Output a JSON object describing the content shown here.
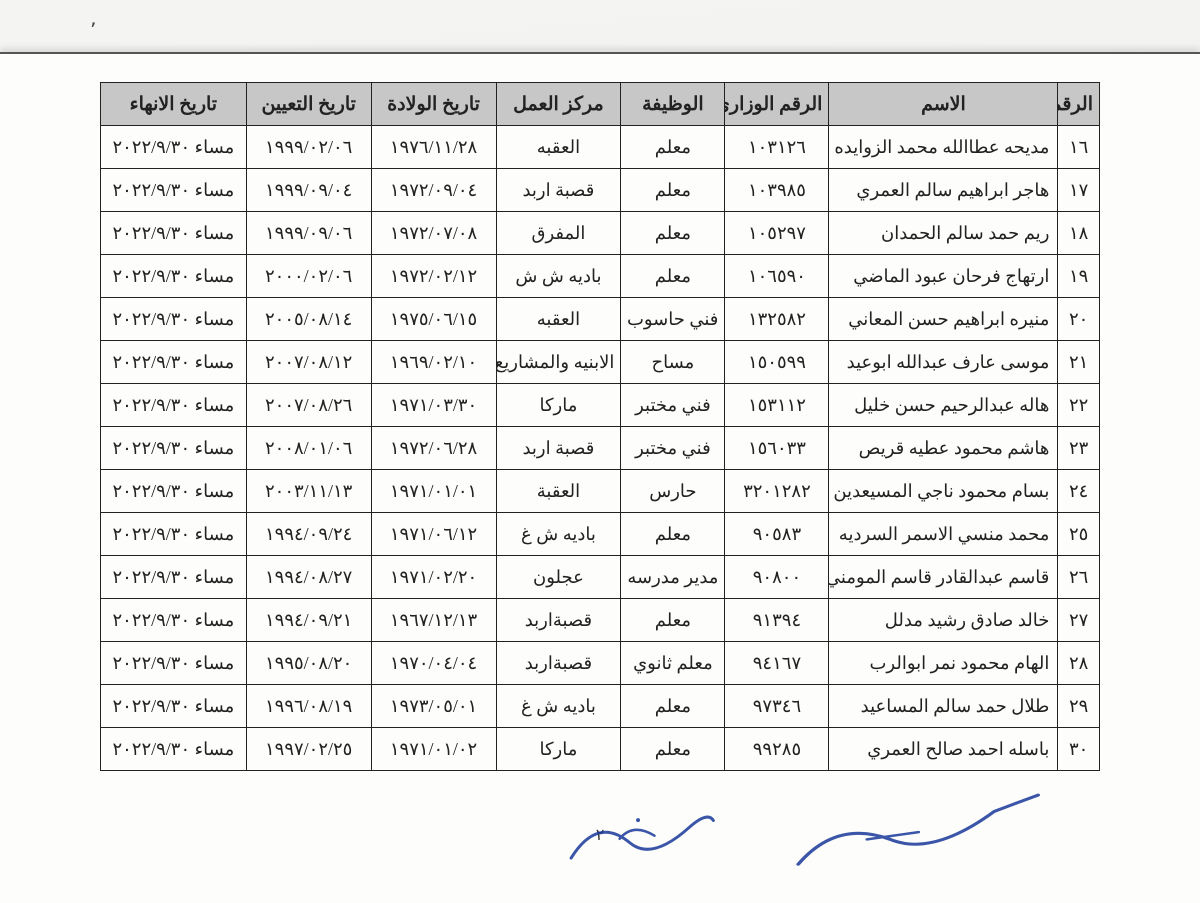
{
  "table": {
    "header_bg": "#c7c7c7",
    "border_color": "#222222",
    "columns": [
      {
        "key": "num",
        "label": "الرقم"
      },
      {
        "key": "name",
        "label": "الاسم"
      },
      {
        "key": "ministry_no",
        "label": "الرقم الوزاري"
      },
      {
        "key": "job",
        "label": "الوظيفة"
      },
      {
        "key": "work_center",
        "label": "مركز العمل"
      },
      {
        "key": "dob",
        "label": "تاريخ الولادة"
      },
      {
        "key": "appoint_date",
        "label": "تاريخ التعيين"
      },
      {
        "key": "end_date",
        "label": "تاريخ الانهاء"
      }
    ],
    "rows": [
      {
        "num": "١٦",
        "name": "مديحه عطاالله محمد الزوايده",
        "ministry_no": "١٠٣١٢٦",
        "job": "معلم",
        "work_center": "العقبه",
        "dob": "١٩٧٦/١١/٢٨",
        "appoint_date": "١٩٩٩/٠٢/٠٦",
        "end_date": "مساء ٢٠٢٢/٩/٣٠"
      },
      {
        "num": "١٧",
        "name": "هاجر ابراهيم سالم العمري",
        "ministry_no": "١٠٣٩٨٥",
        "job": "معلم",
        "work_center": "قصبة اربد",
        "dob": "١٩٧٢/٠٩/٠٤",
        "appoint_date": "١٩٩٩/٠٩/٠٤",
        "end_date": "مساء ٢٠٢٢/٩/٣٠"
      },
      {
        "num": "١٨",
        "name": "ريم حمد سالم الحمدان",
        "ministry_no": "١٠٥٢٩٧",
        "job": "معلم",
        "work_center": "المفرق",
        "dob": "١٩٧٢/٠٧/٠٨",
        "appoint_date": "١٩٩٩/٠٩/٠٦",
        "end_date": "مساء ٢٠٢٢/٩/٣٠"
      },
      {
        "num": "١٩",
        "name": "ارتهاج فرحان عبود الماضي",
        "ministry_no": "١٠٦٥٩٠",
        "job": "معلم",
        "work_center": "باديه ش ش",
        "dob": "١٩٧٢/٠٢/١٢",
        "appoint_date": "٢٠٠٠/٠٢/٠٦",
        "end_date": "مساء ٢٠٢٢/٩/٣٠"
      },
      {
        "num": "٢٠",
        "name": "منيره ابراهيم حسن المعاني",
        "ministry_no": "١٣٢٥٨٢",
        "job": "فني حاسوب",
        "work_center": "العقبه",
        "dob": "١٩٧٥/٠٦/١٥",
        "appoint_date": "٢٠٠٥/٠٨/١٤",
        "end_date": "مساء ٢٠٢٢/٩/٣٠"
      },
      {
        "num": "٢١",
        "name": "موسى عارف عبدالله ابوعيد",
        "ministry_no": "١٥٠٥٩٩",
        "job": "مساح",
        "work_center": "الابنيه والمشاريع",
        "dob": "١٩٦٩/٠٢/١٠",
        "appoint_date": "٢٠٠٧/٠٨/١٢",
        "end_date": "مساء ٢٠٢٢/٩/٣٠"
      },
      {
        "num": "٢٢",
        "name": "هاله عبدالرحيم حسن خليل",
        "ministry_no": "١٥٣١١٢",
        "job": "فني مختبر",
        "work_center": "ماركا",
        "dob": "١٩٧١/٠٣/٣٠",
        "appoint_date": "٢٠٠٧/٠٨/٢٦",
        "end_date": "مساء ٢٠٢٢/٩/٣٠"
      },
      {
        "num": "٢٣",
        "name": "هاشم محمود عطيه قريص",
        "ministry_no": "١٥٦٠٣٣",
        "job": "فني مختبر",
        "work_center": "قصبة اربد",
        "dob": "١٩٧٢/٠٦/٢٨",
        "appoint_date": "٢٠٠٨/٠١/٠٦",
        "end_date": "مساء ٢٠٢٢/٩/٣٠"
      },
      {
        "num": "٢٤",
        "name": "بسام محمود ناجي المسيعدين",
        "ministry_no": "٣٢٠١٢٨٢",
        "job": "حارس",
        "work_center": "العقبة",
        "dob": "١٩٧١/٠١/٠١",
        "appoint_date": "٢٠٠٣/١١/١٣",
        "end_date": "مساء ٢٠٢٢/٩/٣٠"
      },
      {
        "num": "٢٥",
        "name": "محمد منسي الاسمر السرديه",
        "ministry_no": "٩٠٥٨٣",
        "job": "معلم",
        "work_center": "باديه ش غ",
        "dob": "١٩٧١/٠٦/١٢",
        "appoint_date": "١٩٩٤/٠٩/٢٤",
        "end_date": "مساء ٢٠٢٢/٩/٣٠"
      },
      {
        "num": "٢٦",
        "name": "قاسم عبدالقادر قاسم المومني",
        "ministry_no": "٩٠٨٠٠",
        "job": "مدير مدرسه",
        "work_center": "عجلون",
        "dob": "١٩٧١/٠٢/٢٠",
        "appoint_date": "١٩٩٤/٠٨/٢٧",
        "end_date": "مساء ٢٠٢٢/٩/٣٠"
      },
      {
        "num": "٢٧",
        "name": "خالد صادق رشيد مدلل",
        "ministry_no": "٩١٣٩٤",
        "job": "معلم",
        "work_center": "قصبةاربد",
        "dob": "١٩٦٧/١٢/١٣",
        "appoint_date": "١٩٩٤/٠٩/٢١",
        "end_date": "مساء ٢٠٢٢/٩/٣٠"
      },
      {
        "num": "٢٨",
        "name": "الهام محمود نمر ابوالرب",
        "ministry_no": "٩٤١٦٧",
        "job": "معلم ثانوي",
        "work_center": "قصبةاربد",
        "dob": "١٩٧٠/٠٤/٠٤",
        "appoint_date": "١٩٩٥/٠٨/٢٠",
        "end_date": "مساء ٢٠٢٢/٩/٣٠"
      },
      {
        "num": "٢٩",
        "name": "طلال حمد سالم المساعيد",
        "ministry_no": "٩٧٣٤٦",
        "job": "معلم",
        "work_center": "باديه ش غ",
        "dob": "١٩٧٣/٠٥/٠١",
        "appoint_date": "١٩٩٦/٠٨/١٩",
        "end_date": "مساء ٢٠٢٢/٩/٣٠"
      },
      {
        "num": "٣٠",
        "name": "باسله احمد صالح العمري",
        "ministry_no": "٩٩٢٨٥",
        "job": "معلم",
        "work_center": "ماركا",
        "dob": "١٩٧١/٠١/٠٢",
        "appoint_date": "١٩٩٧/٠٢/٢٥",
        "end_date": "مساء ٢٠٢٢/٩/٣٠"
      }
    ]
  },
  "page_number": "٢",
  "signatures": {
    "sig1": "صـ",
    "sig2": "ــ"
  }
}
